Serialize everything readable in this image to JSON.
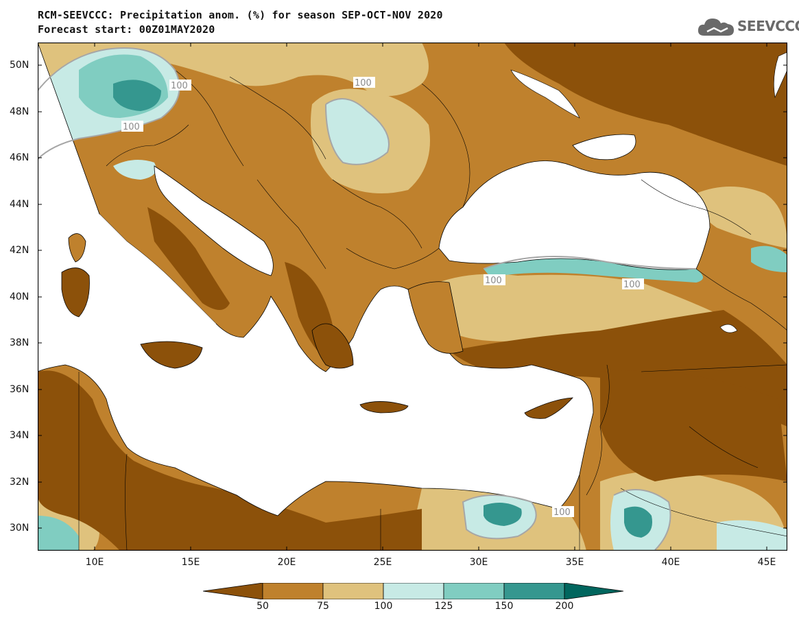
{
  "title": {
    "line1": "RCM-SEEVCCC: Precipitation anom. (%) for season SEP-OCT-NOV 2020",
    "line2": "Forecast start: 00Z01MAY2020"
  },
  "logo": {
    "text": "SEEVCCC",
    "icon": "cloud-icon"
  },
  "map": {
    "lat_labels": [
      "50N",
      "48N",
      "46N",
      "44N",
      "42N",
      "40N",
      "38N",
      "36N",
      "34N",
      "32N",
      "30N"
    ],
    "lon_labels": [
      "10E",
      "15E",
      "20E",
      "25E",
      "30E",
      "35E",
      "40E",
      "45E"
    ],
    "contour_labels": [
      "100",
      "100",
      "100",
      "100",
      "100",
      "100"
    ]
  },
  "legend": {
    "labels": [
      "50",
      "75",
      "100",
      "125",
      "150",
      "200"
    ],
    "colors": [
      "#8c510a",
      "#bf812d",
      "#dfc27d",
      "#c7eae5",
      "#80cdc1",
      "#35978f",
      "#01665e"
    ]
  }
}
